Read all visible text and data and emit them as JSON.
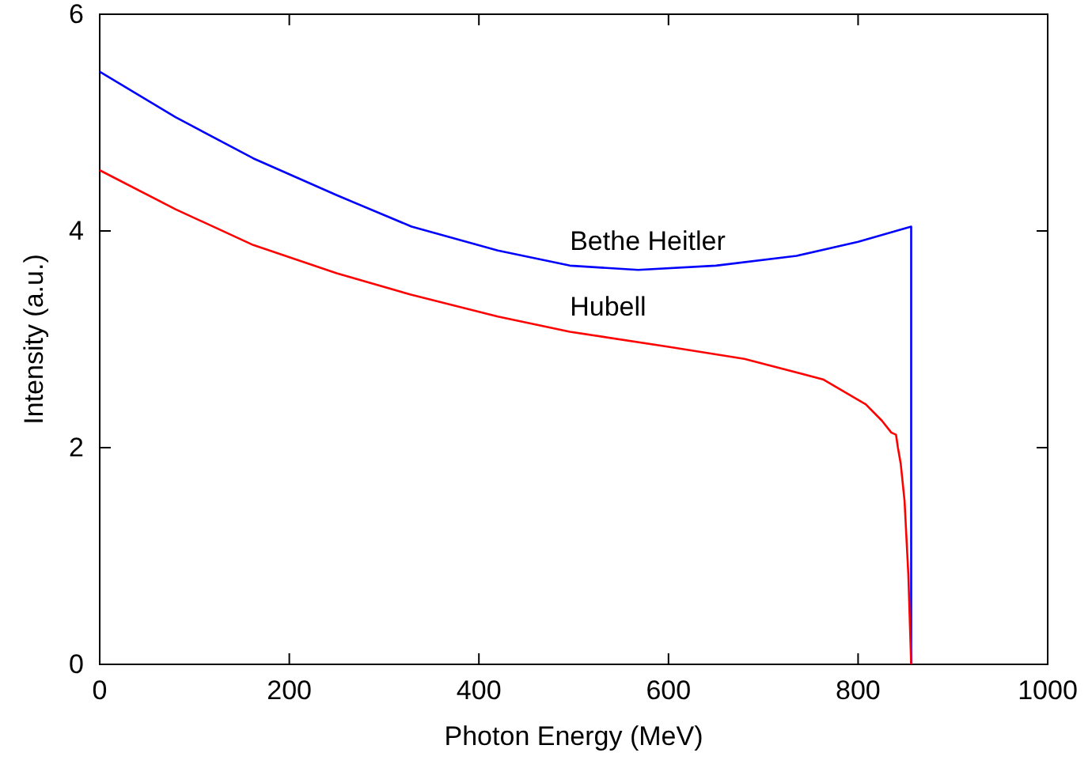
{
  "chart_data": {
    "type": "line",
    "xlabel": "Photon Energy (MeV)",
    "ylabel": "Intensity (a.u.)",
    "xlim": [
      0,
      1000
    ],
    "ylim": [
      0,
      6
    ],
    "xticks": [
      0,
      200,
      400,
      600,
      800,
      1000
    ],
    "yticks": [
      0,
      2,
      4,
      6
    ],
    "grid": false,
    "legend": false,
    "marker": "none",
    "line_style": "solid",
    "series": [
      {
        "name": "Bethe Heitler",
        "color": "#0000ff",
        "x": [
          0,
          80,
          162,
          250,
          329,
          420,
          496,
          568,
          650,
          735,
          800,
          856,
          856
        ],
        "values": [
          5.47,
          5.05,
          4.67,
          4.33,
          4.04,
          3.82,
          3.68,
          3.64,
          3.68,
          3.77,
          3.9,
          4.04,
          0
        ]
      },
      {
        "name": "Hubell",
        "color": "#ff0000",
        "x": [
          0,
          80,
          162,
          250,
          329,
          420,
          496,
          600,
          680,
          763,
          808,
          825,
          835,
          840,
          842,
          845,
          849,
          853,
          856
        ],
        "values": [
          4.56,
          4.2,
          3.87,
          3.61,
          3.41,
          3.21,
          3.07,
          2.93,
          2.82,
          2.63,
          2.4,
          2.25,
          2.14,
          2.12,
          2.0,
          1.85,
          1.51,
          0.83,
          0
        ]
      }
    ]
  }
}
